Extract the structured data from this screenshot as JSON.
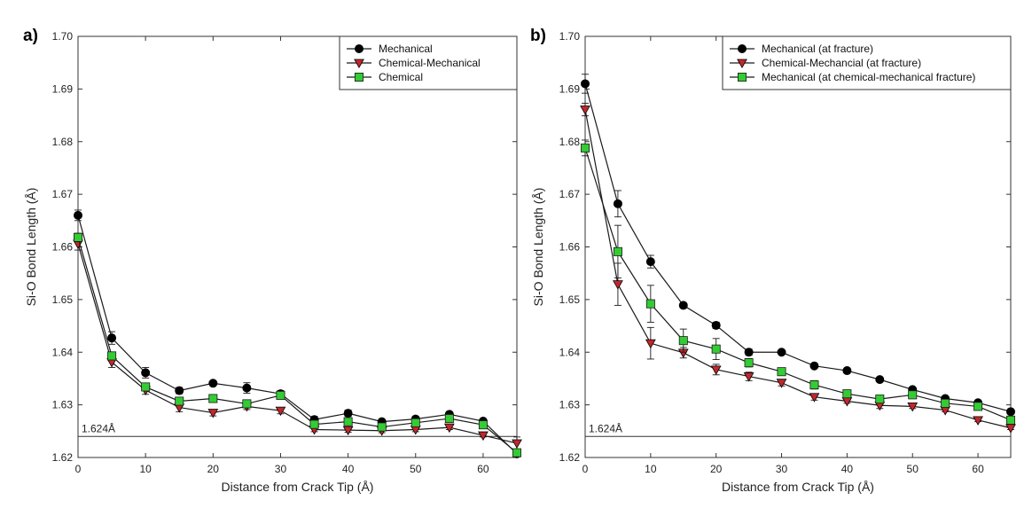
{
  "chart_data": [
    {
      "type": "line",
      "panel_label": "a)",
      "xlabel": "Distance from Crack Tip (Å)",
      "ylabel": "Si-O Bond Length (Å)",
      "xlim": [
        0,
        65
      ],
      "ylim": [
        1.62,
        1.7
      ],
      "xticks": [
        0,
        10,
        20,
        30,
        40,
        50,
        60
      ],
      "yticks": [
        1.62,
        1.63,
        1.64,
        1.65,
        1.66,
        1.67,
        1.68,
        1.69,
        1.7
      ],
      "ytick_labels": [
        "1.62",
        "1.63",
        "1.64",
        "1.65",
        "1.66",
        "1.67",
        "1.68",
        "1.69",
        "1.70"
      ],
      "grid": false,
      "legend_position": "top-right",
      "reference_line": {
        "y": 1.624,
        "label": "1.624Å"
      },
      "series": [
        {
          "name": "Mechanical",
          "marker": "circle",
          "color": "#000000",
          "x": [
            0,
            5,
            10,
            15,
            20,
            25,
            30,
            35,
            40,
            45,
            50,
            55,
            60,
            65
          ],
          "y": [
            1.666,
            1.6427,
            1.6361,
            1.6327,
            1.6341,
            1.6332,
            1.6321,
            1.6272,
            1.6284,
            1.6268,
            1.6273,
            1.6282,
            1.6269,
            1.6207
          ],
          "err": [
            0.001,
            0.0012,
            0.001,
            0.0006,
            0.0004,
            0.001,
            0.0006,
            0.0006,
            0.0006,
            0.0004,
            0.0005,
            0.0004,
            0.0004,
            0.0004
          ]
        },
        {
          "name": "Chemical-Mechanical",
          "marker": "triangle-down",
          "color": "#c0282d",
          "x": [
            0,
            5,
            10,
            15,
            20,
            25,
            30,
            35,
            40,
            45,
            50,
            55,
            60,
            65
          ],
          "y": [
            1.6606,
            1.6381,
            1.6328,
            1.6295,
            1.6285,
            1.6297,
            1.6289,
            1.6253,
            1.6252,
            1.6251,
            1.6253,
            1.6257,
            1.6242,
            1.6227
          ],
          "err": [
            0.0012,
            0.001,
            0.0008,
            0.0008,
            0.0006,
            0.0006,
            0.0006,
            0.0004,
            0.0004,
            0.0004,
            0.0004,
            0.0004,
            0.0003,
            0.0012
          ]
        },
        {
          "name": "Chemical",
          "marker": "square",
          "color": "#33cc33",
          "x": [
            0,
            5,
            10,
            15,
            20,
            25,
            30,
            35,
            40,
            45,
            50,
            55,
            60,
            65
          ],
          "y": [
            1.6618,
            1.6393,
            1.6334,
            1.6307,
            1.6312,
            1.6302,
            1.6318,
            1.6263,
            1.6268,
            1.6258,
            1.6266,
            1.6274,
            1.6262,
            1.6209
          ],
          "err": [
            0.0008,
            0.0006,
            0.0006,
            0.0006,
            0.0004,
            0.0004,
            0.0004,
            0.0004,
            0.0004,
            0.0004,
            0.0004,
            0.0004,
            0.0003,
            0.0004
          ]
        }
      ]
    },
    {
      "type": "line",
      "panel_label": "b)",
      "xlabel": "Distance from Crack Tip (Å)",
      "ylabel": "Si-O Bond Length (Å)",
      "xlim": [
        0,
        65
      ],
      "ylim": [
        1.62,
        1.7
      ],
      "xticks": [
        0,
        10,
        20,
        30,
        40,
        50,
        60
      ],
      "yticks": [
        1.62,
        1.63,
        1.64,
        1.65,
        1.66,
        1.67,
        1.68,
        1.69,
        1.7
      ],
      "ytick_labels": [
        "1.62",
        "1.63",
        "1.64",
        "1.65",
        "1.66",
        "1.67",
        "1.68",
        "1.69",
        "1.70"
      ],
      "grid": false,
      "legend_position": "top-right",
      "reference_line": {
        "y": 1.624,
        "label": "1.624Å"
      },
      "series": [
        {
          "name": "Mechanical (at fracture)",
          "marker": "circle",
          "color": "#000000",
          "x": [
            0,
            5,
            10,
            15,
            20,
            25,
            30,
            35,
            40,
            45,
            50,
            55,
            60,
            65
          ],
          "y": [
            1.691,
            1.6682,
            1.6572,
            1.6489,
            1.6451,
            1.64,
            1.64,
            1.6374,
            1.6365,
            1.6348,
            1.6329,
            1.6312,
            1.6304,
            1.6287
          ],
          "err": [
            0.0018,
            0.0025,
            0.0012,
            0.0004,
            0.0006,
            0.0006,
            0.0004,
            0.0004,
            0.0004,
            0.0004,
            0.0003,
            0.0003,
            0.0003,
            0.0003
          ]
        },
        {
          "name": "Chemical-Mechancial (at fracture)",
          "marker": "triangle-down",
          "color": "#c0282d",
          "x": [
            0,
            5,
            10,
            15,
            20,
            25,
            30,
            35,
            40,
            45,
            50,
            55,
            60,
            65
          ],
          "y": [
            1.6861,
            1.6529,
            1.6417,
            1.6399,
            1.6367,
            1.6354,
            1.6342,
            1.6315,
            1.6307,
            1.6299,
            1.6297,
            1.629,
            1.6271,
            1.6256
          ],
          "err": [
            0.0012,
            0.004,
            0.003,
            0.001,
            0.001,
            0.0008,
            0.0006,
            0.0006,
            0.0004,
            0.0006,
            0.0004,
            0.0003,
            0.0003,
            0.0003
          ]
        },
        {
          "name": "Mechanical (at chemical-mechanical fracture)",
          "marker": "square",
          "color": "#33cc33",
          "x": [
            0,
            5,
            10,
            15,
            20,
            25,
            30,
            35,
            40,
            45,
            50,
            55,
            60,
            65
          ],
          "y": [
            1.6788,
            1.6591,
            1.6492,
            1.6422,
            1.6406,
            1.638,
            1.6363,
            1.6338,
            1.6321,
            1.6311,
            1.6319,
            1.6303,
            1.6297,
            1.6271
          ],
          "err": [
            0.0015,
            0.005,
            0.0035,
            0.0022,
            0.002,
            0.0008,
            0.0006,
            0.0008,
            0.0006,
            0.0006,
            0.0004,
            0.0004,
            0.0004,
            0.0004
          ]
        }
      ]
    }
  ]
}
